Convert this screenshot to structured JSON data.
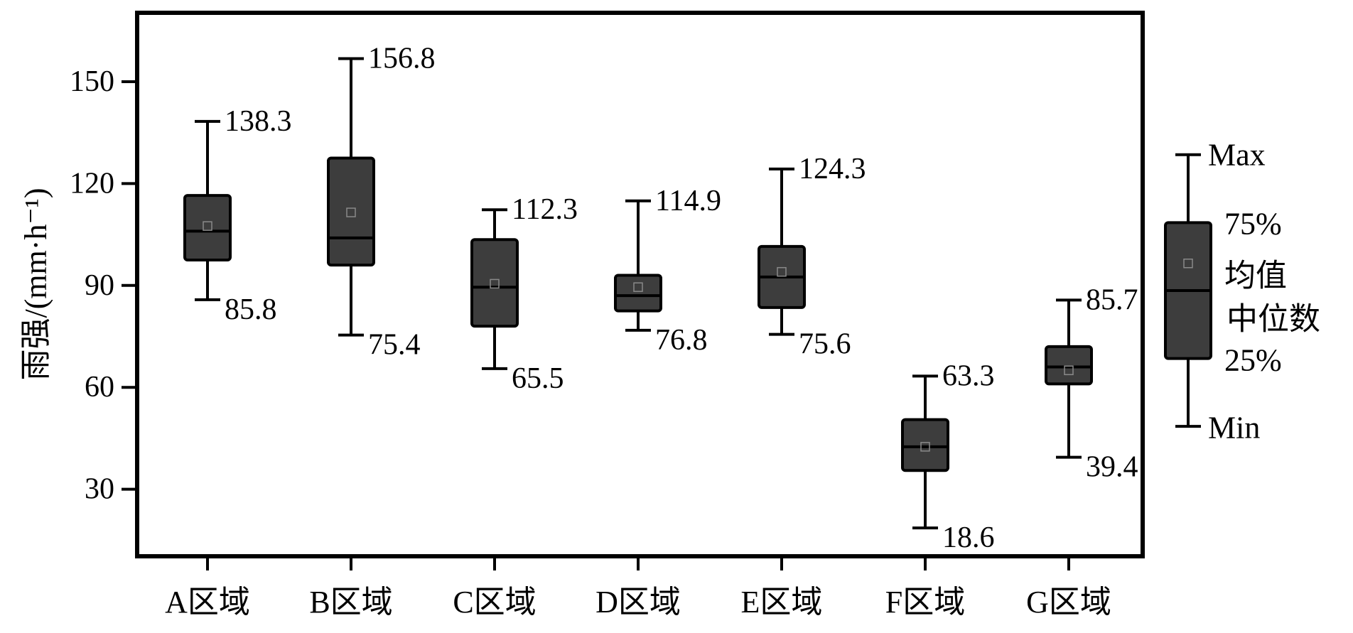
{
  "chart_data": {
    "type": "box",
    "ylabel": "雨强/(mm·h⁻¹)",
    "ylim": [
      15,
      175
    ],
    "yticks": [
      30,
      60,
      90,
      120,
      150
    ],
    "grid": false,
    "categories": [
      "A区域",
      "B区域",
      "C区域",
      "D区域",
      "E区域",
      "F区域",
      "G区域"
    ],
    "boxes": [
      {
        "category": "A区域",
        "min": 85.8,
        "q1": 97.5,
        "median": 106,
        "mean": 107.5,
        "q3": 116.5,
        "max": 138.3,
        "max_label": "138.3",
        "min_label": "85.8"
      },
      {
        "category": "B区域",
        "min": 75.4,
        "q1": 96,
        "median": 104,
        "mean": 111.5,
        "q3": 127.5,
        "max": 156.8,
        "max_label": "156.8",
        "min_label": "75.4"
      },
      {
        "category": "C区域",
        "min": 65.5,
        "q1": 78,
        "median": 89.5,
        "mean": 90.5,
        "q3": 103.5,
        "max": 112.3,
        "max_label": "112.3",
        "min_label": "65.5"
      },
      {
        "category": "D区域",
        "min": 76.8,
        "q1": 82.5,
        "median": 87,
        "mean": 89.5,
        "q3": 93,
        "max": 114.9,
        "max_label": "114.9",
        "min_label": "76.8"
      },
      {
        "category": "E区域",
        "min": 75.6,
        "q1": 83.5,
        "median": 92.5,
        "mean": 94,
        "q3": 101.5,
        "max": 124.3,
        "max_label": "124.3",
        "min_label": "75.6"
      },
      {
        "category": "F区域",
        "min": 18.6,
        "q1": 35.5,
        "median": 42.5,
        "mean": 42.5,
        "q3": 50.5,
        "max": 63.3,
        "max_label": "63.3",
        "min_label": "18.6"
      },
      {
        "category": "G区域",
        "min": 39.4,
        "q1": 61,
        "median": 66,
        "mean": 65,
        "q3": 72,
        "max": 85.7,
        "max_label": "85.7",
        "min_label": "39.4"
      }
    ],
    "legend": {
      "placement": "right",
      "labels": {
        "max": "Max",
        "q3": "75%",
        "mean": "均值",
        "median": "中位数",
        "q1": "25%",
        "min": "Min"
      }
    },
    "colors": {
      "box_fill": "#3d3d3d",
      "stroke": "#000000",
      "mean_marker": "#8a8a8a"
    }
  }
}
